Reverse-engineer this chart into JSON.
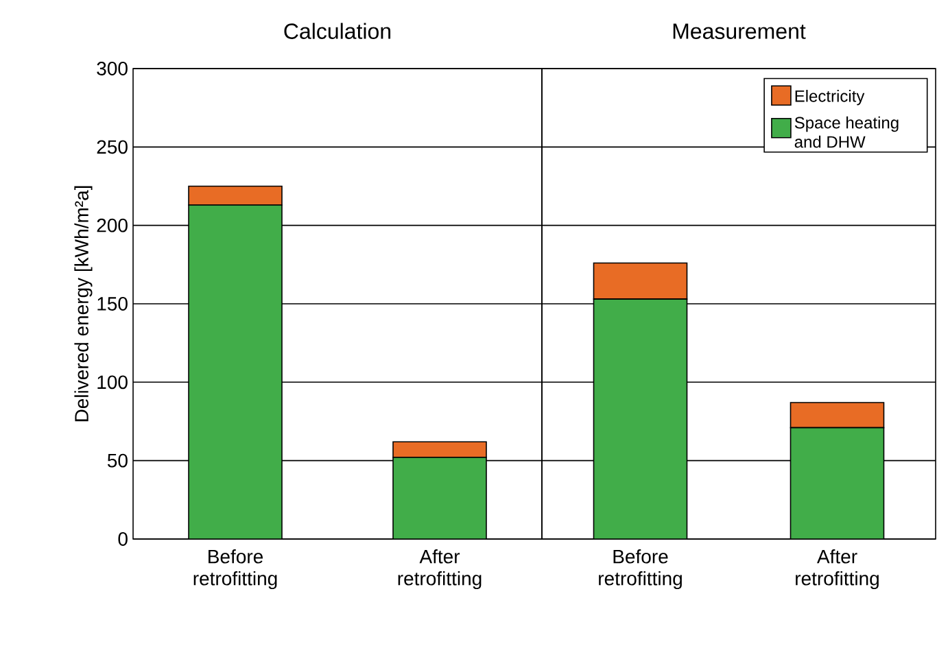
{
  "chart_data": [
    {
      "type": "bar",
      "stacked": true,
      "title": "Calculation",
      "ylabel": "Delivered energy [kWh/m²a]",
      "categories": [
        "Before retrofitting",
        "After retrofitting"
      ],
      "series": [
        {
          "color": "#41ad49",
          "values": [
            213,
            52
          ]
        },
        {
          "color": "#e86c25",
          "values": [
            12,
            10
          ]
        }
      ],
      "ylim": [
        0,
        300
      ],
      "yticks": [
        0,
        50,
        100,
        150,
        200,
        250,
        300
      ],
      "grid": "y"
    },
    {
      "type": "bar",
      "stacked": true,
      "title": "Measurement",
      "categories": [
        "Before retrofitting",
        "After retrofitting"
      ],
      "series": [
        {
          "name": "Space heating and DHW",
          "color": "#41ad49",
          "values": [
            153,
            71
          ]
        },
        {
          "name": "Electricity",
          "color": "#e86c25",
          "values": [
            23,
            16
          ]
        }
      ],
      "ylim": [
        0,
        300
      ],
      "yticks": [
        0,
        50,
        100,
        150,
        200,
        250,
        300
      ],
      "grid": "y",
      "legend": "top right",
      "tick_labels": "x"
    }
  ]
}
